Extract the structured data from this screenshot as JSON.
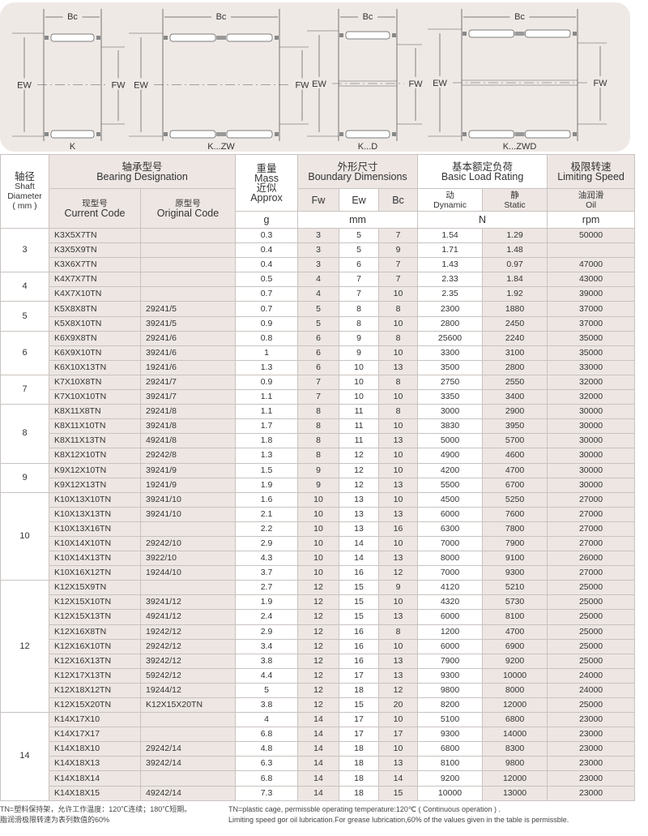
{
  "diagrams": [
    {
      "label": "K",
      "bc": "Bc",
      "ew": "EW",
      "fw": "FW"
    },
    {
      "label": "K...ZW",
      "bc": "Bc",
      "ew": "EW",
      "fw": "FW"
    },
    {
      "label": "K...D",
      "bc": "Bc",
      "ew": "EW",
      "fw": "FW"
    },
    {
      "label": "K...ZWD",
      "bc": "Bc",
      "ew": "EW",
      "fw": "FW"
    }
  ],
  "header": {
    "shaft_cn": "轴径",
    "shaft_en": "Shaft",
    "shaft_en2": "Diameter",
    "shaft_unit": "( mm )",
    "designation_cn": "轴承型号",
    "designation_en": "Bearing Designation",
    "current_cn": "现型号",
    "current_en": "Current Code",
    "original_cn": "原型号",
    "original_en": "Original Code",
    "mass_cn": "重量",
    "mass_en": "Mass",
    "mass_cn2": "近似",
    "mass_en2": "Approx",
    "mass_unit": "g",
    "boundary_cn": "外形尺寸",
    "boundary_en": "Boundary Dimensions",
    "fw": "Fw",
    "ew": "Ew",
    "bc": "Bc",
    "dim_unit": "mm",
    "load_cn": "基本额定负荷",
    "load_en": "Basic Load Rating",
    "dynamic_cn": "动",
    "dynamic_en": "Dynamic",
    "static_cn": "静",
    "static_en": "Static",
    "load_unit": "N",
    "speed_cn": "极限转速",
    "speed_en": "Limiting Speed",
    "oil_cn": "油润滑",
    "oil_en": "Oil",
    "speed_unit": "rpm"
  },
  "groups": [
    {
      "shaft": "3",
      "rows": [
        [
          "K3X5X7TN",
          "",
          "0.3",
          "3",
          "5",
          "7",
          "1.54",
          "1.29",
          "50000"
        ],
        [
          "K3X5X9TN",
          "",
          "0.4",
          "3",
          "5",
          "9",
          "1.71",
          "1.48",
          ""
        ],
        [
          "K3X6X7TN",
          "",
          "0.4",
          "3",
          "6",
          "7",
          "1.43",
          "0.97",
          "47000"
        ]
      ]
    },
    {
      "shaft": "4",
      "rows": [
        [
          "K4X7X7TN",
          "",
          "0.5",
          "4",
          "7",
          "7",
          "2.33",
          "1.84",
          "43000"
        ],
        [
          "K4X7X10TN",
          "",
          "0.7",
          "4",
          "7",
          "10",
          "2.35",
          "1.92",
          "39000"
        ]
      ]
    },
    {
      "shaft": "5",
      "rows": [
        [
          "K5X8X8TN",
          "29241/5",
          "0.7",
          "5",
          "8",
          "8",
          "2300",
          "1880",
          "37000"
        ],
        [
          "K5X8X10TN",
          "39241/5",
          "0.9",
          "5",
          "8",
          "10",
          "2800",
          "2450",
          "37000"
        ]
      ]
    },
    {
      "shaft": "6",
      "rows": [
        [
          "K6X9X8TN",
          "29241/6",
          "0.8",
          "6",
          "9",
          "8",
          "25600",
          "2240",
          "35000"
        ],
        [
          "K6X9X10TN",
          "39241/6",
          "1",
          "6",
          "9",
          "10",
          "3300",
          "3100",
          "35000"
        ],
        [
          "K6X10X13TN",
          "19241/6",
          "1.3",
          "6",
          "10",
          "13",
          "3500",
          "2800",
          "33000"
        ]
      ]
    },
    {
      "shaft": "7",
      "rows": [
        [
          "K7X10X8TN",
          "29241/7",
          "0.9",
          "7",
          "10",
          "8",
          "2750",
          "2550",
          "32000"
        ],
        [
          "K7X10X10TN",
          "39241/7",
          "1.1",
          "7",
          "10",
          "10",
          "3350",
          "3400",
          "32000"
        ]
      ]
    },
    {
      "shaft": "8",
      "rows": [
        [
          "K8X11X8TN",
          "29241/8",
          "1.1",
          "8",
          "11",
          "8",
          "3000",
          "2900",
          "30000"
        ],
        [
          "K8X11X10TN",
          "39241/8",
          "1.7",
          "8",
          "11",
          "10",
          "3830",
          "3950",
          "30000"
        ],
        [
          "K8X11X13TN",
          "49241/8",
          "1.8",
          "8",
          "11",
          "13",
          "5000",
          "5700",
          "30000"
        ],
        [
          "K8X12X10TN",
          "29242/8",
          "1.3",
          "8",
          "12",
          "10",
          "4900",
          "4600",
          "30000"
        ]
      ]
    },
    {
      "shaft": "9",
      "rows": [
        [
          "K9X12X10TN",
          "39241/9",
          "1.5",
          "9",
          "12",
          "10",
          "4200",
          "4700",
          "30000"
        ],
        [
          "K9X12X13TN",
          "19241/9",
          "1.9",
          "9",
          "12",
          "13",
          "5500",
          "6700",
          "30000"
        ]
      ]
    },
    {
      "shaft": "10",
      "rows": [
        [
          "K10X13X10TN",
          "39241/10",
          "1.6",
          "10",
          "13",
          "10",
          "4500",
          "5250",
          "27000"
        ],
        [
          "K10X13X13TN",
          "39241/10",
          "2.1",
          "10",
          "13",
          "13",
          "6000",
          "7600",
          "27000"
        ],
        [
          "K10X13X16TN",
          "",
          "2.2",
          "10",
          "13",
          "16",
          "6300",
          "7800",
          "27000"
        ],
        [
          "K10X14X10TN",
          "29242/10",
          "2.9",
          "10",
          "14",
          "10",
          "7000",
          "7900",
          "27000"
        ],
        [
          "K10X14X13TN",
          "3922/10",
          "4.3",
          "10",
          "14",
          "13",
          "8000",
          "9100",
          "26000"
        ],
        [
          "K10X16X12TN",
          "19244/10",
          "3.7",
          "10",
          "16",
          "12",
          "7000",
          "9300",
          "27000"
        ]
      ]
    },
    {
      "shaft": "12",
      "rows": [
        [
          "K12X15X9TN",
          "",
          "2.7",
          "12",
          "15",
          "9",
          "4120",
          "5210",
          "25000"
        ],
        [
          "K12X15X10TN",
          "39241/12",
          "1.9",
          "12",
          "15",
          "10",
          "4320",
          "5730",
          "25000"
        ],
        [
          "K12X15X13TN",
          "49241/12",
          "2.4",
          "12",
          "15",
          "13",
          "6000",
          "8100",
          "25000"
        ],
        [
          "K12X16X8TN",
          "19242/12",
          "2.9",
          "12",
          "16",
          "8",
          "1200",
          "4700",
          "25000"
        ],
        [
          "K12X16X10TN",
          "29242/12",
          "3.4",
          "12",
          "16",
          "10",
          "6000",
          "6900",
          "25000"
        ],
        [
          "K12X16X13TN",
          "39242/12",
          "3.8",
          "12",
          "16",
          "13",
          "7900",
          "9200",
          "25000"
        ],
        [
          "K12X17X13TN",
          "59242/12",
          "4.4",
          "12",
          "17",
          "13",
          "9300",
          "10000",
          "24000"
        ],
        [
          "K12X18X12TN",
          "19244/12",
          "5",
          "12",
          "18",
          "12",
          "9800",
          "8000",
          "24000"
        ],
        [
          "K12X15X20TN",
          "K12X15X20TN",
          "3.8",
          "12",
          "15",
          "20",
          "8200",
          "12000",
          "25000"
        ]
      ]
    },
    {
      "shaft": "14",
      "rows": [
        [
          "K14X17X10",
          "",
          "4",
          "14",
          "17",
          "10",
          "5100",
          "6800",
          "23000"
        ],
        [
          "K14X17X17",
          "",
          "6.8",
          "14",
          "17",
          "17",
          "9300",
          "14000",
          "23000"
        ],
        [
          "K14X18X10",
          "29242/14",
          "4.8",
          "14",
          "18",
          "10",
          "6800",
          "8300",
          "23000"
        ],
        [
          "K14X18X13",
          "39242/14",
          "6.3",
          "14",
          "18",
          "13",
          "8100",
          "9800",
          "23000"
        ],
        [
          "K14X18X14",
          "",
          "6.8",
          "14",
          "18",
          "14",
          "9200",
          "12000",
          "23000"
        ],
        [
          "K14X18X15",
          "49242/14",
          "7.3",
          "14",
          "18",
          "15",
          "10000",
          "13000",
          "23000"
        ]
      ]
    }
  ],
  "notes": {
    "cn_1": "TN=塑料保持架，允许工作温度：120℃连续；180℃短期。",
    "cn_2": "脂润滑极限转速为表列数值的60%",
    "en_1": "TN=plastic cage, permissble operating temperature:120℃ ( Continuous operation ) .",
    "en_2": "Limiting speed gor oil lubrication.For grease lubrication,60% of the values given in the table is permissble."
  }
}
